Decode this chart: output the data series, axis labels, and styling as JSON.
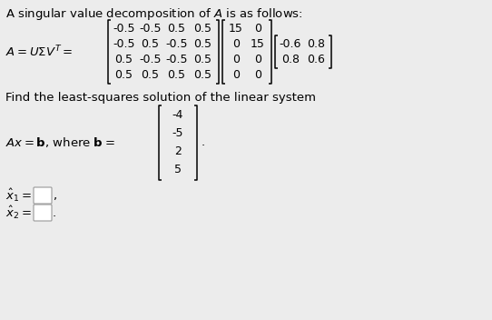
{
  "title_text": "A singular value decomposition of $\\mathit{A}$ is as follows:",
  "U_matrix": [
    [
      "-0.5",
      "-0.5",
      "0.5",
      "0.5"
    ],
    [
      "-0.5",
      "0.5",
      "-0.5",
      "0.5"
    ],
    [
      "0.5",
      "-0.5",
      "-0.5",
      "0.5"
    ],
    [
      "0.5",
      "0.5",
      "0.5",
      "0.5"
    ]
  ],
  "Sigma_matrix": [
    [
      "15",
      "0"
    ],
    [
      "0",
      "15"
    ],
    [
      "0",
      "0"
    ],
    [
      "0",
      "0"
    ]
  ],
  "VT_matrix": [
    [
      "-0.6",
      "0.8"
    ],
    [
      "0.8",
      "0.6"
    ]
  ],
  "find_text": "Find the least-squares solution of the linear system",
  "b_vector": [
    "-4",
    "-5",
    "2",
    "5"
  ],
  "bg_color": "#ececec",
  "text_color": "#000000"
}
